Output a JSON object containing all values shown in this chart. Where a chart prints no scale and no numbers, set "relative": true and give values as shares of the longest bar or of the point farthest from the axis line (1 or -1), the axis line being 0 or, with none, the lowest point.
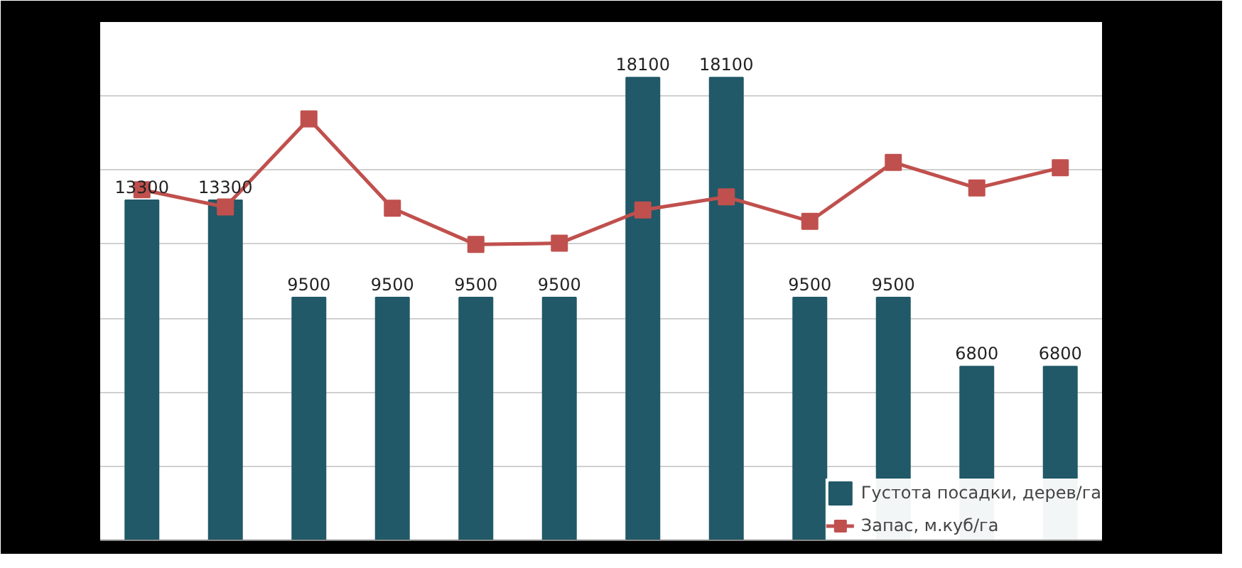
{
  "chart_data": [
    {
      "type": "bar",
      "categories": [
        null,
        null,
        null,
        null,
        null,
        null,
        null,
        null,
        null,
        null,
        null,
        null
      ],
      "series": [
        {
          "name": "Густота посадки, дерев/га",
          "color": "#215968",
          "values": [
            13300,
            13300,
            9500,
            9500,
            9500,
            9500,
            18100,
            18100,
            9500,
            9500,
            6800,
            6800
          ]
        }
      ],
      "data_labels": true,
      "grid": "y",
      "legend": "bottom right",
      "tick_labels": false
    },
    {
      "type": "line",
      "categories": [
        null,
        null,
        null,
        null,
        null,
        null,
        null,
        null,
        null,
        null,
        null,
        null
      ],
      "relative": true,
      "series": [
        {
          "name": "Запас, м.куб/га",
          "color": "#c0504d",
          "values": [
            0.832,
            0.791,
            1,
            0.788,
            0.702,
            0.705,
            0.784,
            0.815,
            0.757,
            0.897,
            0.836,
            0.884
          ]
        }
      ],
      "marker": "square",
      "legend": "bottom right",
      "tick_labels": false
    }
  ]
}
